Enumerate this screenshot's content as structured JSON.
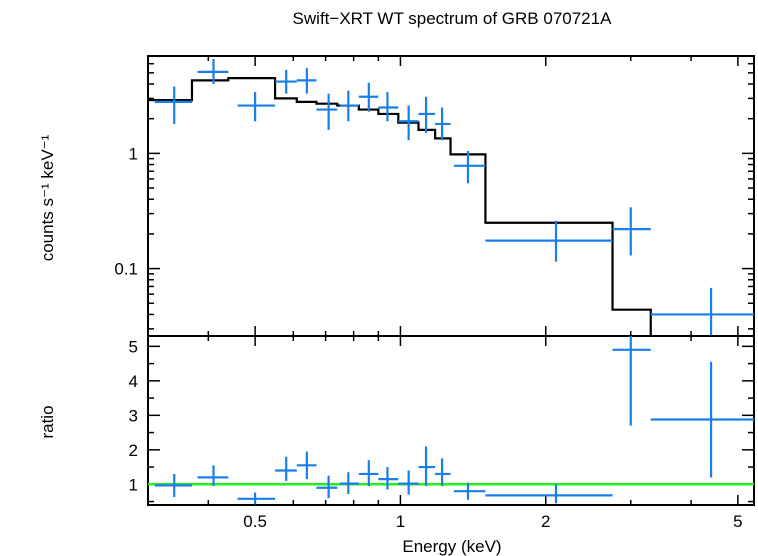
{
  "chart_data": {
    "type": "scatter",
    "title": "Swift−XRT WT spectrum of GRB 070721A",
    "xlabel": "Energy (keV)",
    "xscale": "log",
    "xlim": [
      0.3,
      5.4
    ],
    "xticks": [
      {
        "v": 0.5,
        "label": "0.5"
      },
      {
        "v": 1,
        "label": "1"
      },
      {
        "v": 2,
        "label": "2"
      },
      {
        "v": 5,
        "label": "5"
      }
    ],
    "colors": {
      "data": "#1a7ee8",
      "model": "#000000",
      "unity": "#22ee22",
      "frame": "#000000"
    },
    "top_panel": {
      "ylabel": "counts s⁻¹ keV⁻¹",
      "yscale": "log",
      "ylim": [
        0.026,
        7.0
      ],
      "yticks": [
        {
          "v": 1,
          "label": "1"
        },
        {
          "v": 0.1,
          "label": "0.1"
        }
      ],
      "data": [
        {
          "x": 0.34,
          "xlo": 0.31,
          "xhi": 0.37,
          "y": 2.8,
          "ylo": 1.8,
          "yhi": 3.8
        },
        {
          "x": 0.41,
          "xlo": 0.38,
          "xhi": 0.44,
          "y": 5.1,
          "ylo": 4.0,
          "yhi": 6.6
        },
        {
          "x": 0.5,
          "xlo": 0.46,
          "xhi": 0.55,
          "y": 2.6,
          "ylo": 1.9,
          "yhi": 3.4
        },
        {
          "x": 0.58,
          "xlo": 0.55,
          "xhi": 0.61,
          "y": 4.2,
          "ylo": 3.3,
          "yhi": 5.3
        },
        {
          "x": 0.64,
          "xlo": 0.61,
          "xhi": 0.67,
          "y": 4.3,
          "ylo": 3.3,
          "yhi": 5.5
        },
        {
          "x": 0.71,
          "xlo": 0.67,
          "xhi": 0.74,
          "y": 2.4,
          "ylo": 1.6,
          "yhi": 3.3
        },
        {
          "x": 0.78,
          "xlo": 0.75,
          "xhi": 0.82,
          "y": 2.6,
          "ylo": 1.9,
          "yhi": 3.5
        },
        {
          "x": 0.86,
          "xlo": 0.82,
          "xhi": 0.9,
          "y": 3.1,
          "ylo": 2.3,
          "yhi": 4.1
        },
        {
          "x": 0.94,
          "xlo": 0.9,
          "xhi": 0.99,
          "y": 2.5,
          "ylo": 1.9,
          "yhi": 3.4
        },
        {
          "x": 1.04,
          "xlo": 0.99,
          "xhi": 1.09,
          "y": 1.9,
          "ylo": 1.3,
          "yhi": 2.6
        },
        {
          "x": 1.13,
          "xlo": 1.09,
          "xhi": 1.18,
          "y": 2.2,
          "ylo": 1.5,
          "yhi": 3.1
        },
        {
          "x": 1.22,
          "xlo": 1.18,
          "xhi": 1.27,
          "y": 1.8,
          "ylo": 1.3,
          "yhi": 2.5
        },
        {
          "x": 1.38,
          "xlo": 1.29,
          "xhi": 1.5,
          "y": 0.78,
          "ylo": 0.55,
          "yhi": 1.05
        },
        {
          "x": 2.1,
          "xlo": 1.5,
          "xhi": 2.75,
          "y": 0.175,
          "ylo": 0.115,
          "yhi": 0.26
        },
        {
          "x": 3.0,
          "xlo": 2.75,
          "xhi": 3.3,
          "y": 0.22,
          "ylo": 0.13,
          "yhi": 0.34
        },
        {
          "x": 4.4,
          "xlo": 3.3,
          "xhi": 5.4,
          "y": 0.04,
          "ylo": 0.026,
          "yhi": 0.068
        }
      ],
      "model_steps": [
        {
          "xlo": 0.3,
          "xhi": 0.37,
          "y": 2.9
        },
        {
          "xlo": 0.37,
          "xhi": 0.44,
          "y": 4.3
        },
        {
          "xlo": 0.44,
          "xhi": 0.55,
          "y": 4.5
        },
        {
          "xlo": 0.55,
          "xhi": 0.61,
          "y": 3.0
        },
        {
          "xlo": 0.61,
          "xhi": 0.67,
          "y": 2.8
        },
        {
          "xlo": 0.67,
          "xhi": 0.74,
          "y": 2.7
        },
        {
          "xlo": 0.74,
          "xhi": 0.82,
          "y": 2.6
        },
        {
          "xlo": 0.82,
          "xhi": 0.9,
          "y": 2.4
        },
        {
          "xlo": 0.9,
          "xhi": 0.99,
          "y": 2.2
        },
        {
          "xlo": 0.99,
          "xhi": 1.09,
          "y": 1.85
        },
        {
          "xlo": 1.09,
          "xhi": 1.18,
          "y": 1.6
        },
        {
          "xlo": 1.18,
          "xhi": 1.27,
          "y": 1.35
        },
        {
          "xlo": 1.27,
          "xhi": 1.5,
          "y": 0.98
        },
        {
          "xlo": 1.5,
          "xhi": 2.75,
          "y": 0.25
        },
        {
          "xlo": 2.75,
          "xhi": 3.3,
          "y": 0.044
        },
        {
          "xlo": 3.3,
          "xhi": 3.3,
          "y": 0.026
        }
      ]
    },
    "bottom_panel": {
      "ylabel": "ratio",
      "yscale": "linear",
      "ylim": [
        0.4,
        5.3
      ],
      "yticks": [
        {
          "v": 1,
          "label": "1"
        },
        {
          "v": 2,
          "label": "2"
        },
        {
          "v": 3,
          "label": "3"
        },
        {
          "v": 4,
          "label": "4"
        },
        {
          "v": 5,
          "label": "5"
        }
      ],
      "unity": 1,
      "data": [
        {
          "x": 0.34,
          "xlo": 0.31,
          "xhi": 0.37,
          "y": 0.97,
          "ylo": 0.63,
          "yhi": 1.3
        },
        {
          "x": 0.41,
          "xlo": 0.38,
          "xhi": 0.44,
          "y": 1.2,
          "ylo": 0.95,
          "yhi": 1.55
        },
        {
          "x": 0.5,
          "xlo": 0.46,
          "xhi": 0.55,
          "y": 0.58,
          "ylo": 0.42,
          "yhi": 0.76
        },
        {
          "x": 0.58,
          "xlo": 0.55,
          "xhi": 0.61,
          "y": 1.4,
          "ylo": 1.1,
          "yhi": 1.8
        },
        {
          "x": 0.64,
          "xlo": 0.61,
          "xhi": 0.67,
          "y": 1.55,
          "ylo": 1.15,
          "yhi": 1.95
        },
        {
          "x": 0.71,
          "xlo": 0.67,
          "xhi": 0.74,
          "y": 0.9,
          "ylo": 0.6,
          "yhi": 1.25
        },
        {
          "x": 0.78,
          "xlo": 0.75,
          "xhi": 0.82,
          "y": 1.02,
          "ylo": 0.72,
          "yhi": 1.35
        },
        {
          "x": 0.86,
          "xlo": 0.82,
          "xhi": 0.9,
          "y": 1.3,
          "ylo": 0.95,
          "yhi": 1.7
        },
        {
          "x": 0.94,
          "xlo": 0.9,
          "xhi": 0.99,
          "y": 1.15,
          "ylo": 0.85,
          "yhi": 1.5
        },
        {
          "x": 1.04,
          "xlo": 0.99,
          "xhi": 1.09,
          "y": 1.02,
          "ylo": 0.7,
          "yhi": 1.4
        },
        {
          "x": 1.13,
          "xlo": 1.09,
          "xhi": 1.18,
          "y": 1.5,
          "ylo": 0.95,
          "yhi": 2.1
        },
        {
          "x": 1.22,
          "xlo": 1.18,
          "xhi": 1.27,
          "y": 1.3,
          "ylo": 0.95,
          "yhi": 1.75
        },
        {
          "x": 1.38,
          "xlo": 1.29,
          "xhi": 1.5,
          "y": 0.8,
          "ylo": 0.55,
          "yhi": 1.05
        },
        {
          "x": 2.1,
          "xlo": 1.5,
          "xhi": 2.75,
          "y": 0.68,
          "ylo": 0.45,
          "yhi": 1.0
        },
        {
          "x": 3.0,
          "xlo": 2.75,
          "xhi": 3.3,
          "y": 4.9,
          "ylo": 2.7,
          "yhi": 5.3
        },
        {
          "x": 4.4,
          "xlo": 3.3,
          "xhi": 5.4,
          "y": 2.88,
          "ylo": 1.2,
          "yhi": 4.55
        }
      ]
    }
  }
}
